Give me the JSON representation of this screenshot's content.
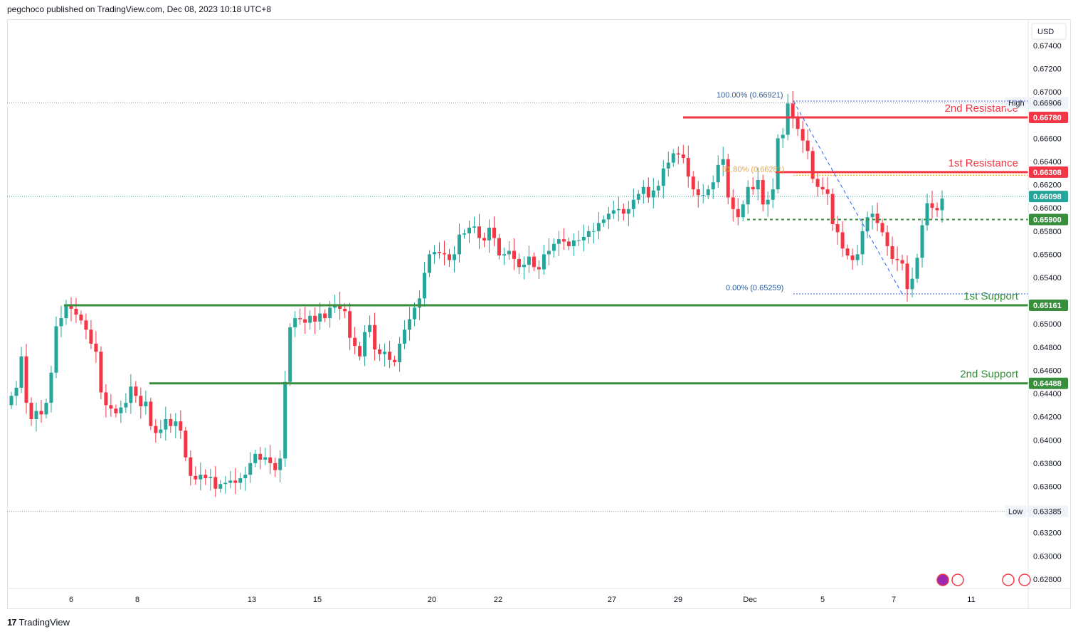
{
  "header": {
    "publisher": "pegchoco published on TradingView.com, Dec 08, 2023 10:18 UTC+8"
  },
  "footer": {
    "brand": "TradingView",
    "logo": "17"
  },
  "chart_data": {
    "type": "candlestick",
    "currency": "USD",
    "ylim": [
      0.6272,
      0.6762
    ],
    "y_ticks": [
      "0.67400",
      "0.67200",
      "0.67000",
      "0.66600",
      "0.66400",
      "0.66200",
      "0.66000",
      "0.65800",
      "0.65600",
      "0.65400",
      "0.65000",
      "0.64800",
      "0.64600",
      "0.64400",
      "0.64200",
      "0.64000",
      "0.63800",
      "0.63600",
      "0.63200",
      "0.63000",
      "0.62800"
    ],
    "x_ticks": [
      "6",
      "8",
      "13",
      "15",
      "20",
      "22",
      "27",
      "29",
      "Dec",
      "5",
      "7",
      "11"
    ],
    "levels": [
      {
        "label": "2nd Resistance",
        "value": "0.66780",
        "color": "#f23645"
      },
      {
        "label": "1st Resistance",
        "value": "0.66308",
        "color": "#f23645"
      },
      {
        "label": "1st Support",
        "value": "0.65161",
        "color": "#388e3c"
      },
      {
        "label": "2nd Support",
        "value": "0.64488",
        "color": "#388e3c"
      }
    ],
    "pivot": {
      "value": "0.65900",
      "color": "#388e3c"
    },
    "current_price": {
      "value": "0.66098",
      "color": "#26a69a"
    },
    "high": {
      "label": "High",
      "value": "0.66906"
    },
    "low": {
      "label": "Low",
      "value": "0.63385"
    },
    "fib": [
      {
        "label": "100.00% (0.66921)",
        "value": 0.66921
      },
      {
        "label": "61.80% (0.66281)",
        "value": 0.66281
      },
      {
        "label": "0.00% (0.65259)",
        "value": 0.65259
      }
    ],
    "up_color": "#26a69a",
    "down_color": "#f23645",
    "closes": [
      0.6438,
      0.6445,
      0.6472,
      0.6432,
      0.6418,
      0.6425,
      0.6422,
      0.6432,
      0.6458,
      0.6498,
      0.6505,
      0.6516,
      0.6513,
      0.6508,
      0.6503,
      0.6495,
      0.6483,
      0.6476,
      0.6441,
      0.643,
      0.6427,
      0.6423,
      0.6428,
      0.6432,
      0.6446,
      0.6438,
      0.6429,
      0.6433,
      0.6412,
      0.6406,
      0.6409,
      0.6418,
      0.6412,
      0.6416,
      0.6408,
      0.6385,
      0.6369,
      0.6366,
      0.637,
      0.6367,
      0.6368,
      0.6358,
      0.6362,
      0.6363,
      0.6365,
      0.6363,
      0.6367,
      0.637,
      0.638,
      0.6388,
      0.6383,
      0.6385,
      0.638,
      0.6374,
      0.6384,
      0.645,
      0.6497,
      0.6505,
      0.6504,
      0.6501,
      0.6507,
      0.6502,
      0.6509,
      0.6505,
      0.6514,
      0.6517,
      0.6513,
      0.6511,
      0.6488,
      0.6481,
      0.6472,
      0.6493,
      0.6499,
      0.6478,
      0.6474,
      0.6476,
      0.6469,
      0.6467,
      0.6483,
      0.6495,
      0.6504,
      0.6514,
      0.6522,
      0.6544,
      0.656,
      0.6562,
      0.6561,
      0.656,
      0.6555,
      0.656,
      0.6577,
      0.6578,
      0.6583,
      0.6584,
      0.6574,
      0.6572,
      0.6583,
      0.6574,
      0.6559,
      0.656,
      0.6563,
      0.6556,
      0.6549,
      0.6551,
      0.6558,
      0.6549,
      0.6547,
      0.656,
      0.6563,
      0.6569,
      0.6573,
      0.6571,
      0.6567,
      0.6572,
      0.6572,
      0.6575,
      0.658,
      0.658,
      0.6587,
      0.659,
      0.6595,
      0.6598,
      0.6599,
      0.6595,
      0.6599,
      0.6607,
      0.6612,
      0.6618,
      0.6609,
      0.6615,
      0.6619,
      0.6634,
      0.6639,
      0.6647,
      0.6646,
      0.6643,
      0.6627,
      0.6616,
      0.6611,
      0.6611,
      0.6616,
      0.6622,
      0.6637,
      0.6642,
      0.6609,
      0.6599,
      0.6592,
      0.6603,
      0.6618,
      0.6616,
      0.6624,
      0.6603,
      0.6607,
      0.6616,
      0.666,
      0.6663,
      0.669,
      0.6678,
      0.6668,
      0.6658,
      0.6649,
      0.6625,
      0.6618,
      0.6616,
      0.6612,
      0.6586,
      0.6579,
      0.6565,
      0.6559,
      0.6555,
      0.656,
      0.658,
      0.6592,
      0.6595,
      0.6587,
      0.6579,
      0.6567,
      0.6556,
      0.6555,
      0.6552,
      0.653,
      0.6539,
      0.6557,
      0.6585,
      0.6604,
      0.66,
      0.6598,
      0.6608
    ]
  }
}
